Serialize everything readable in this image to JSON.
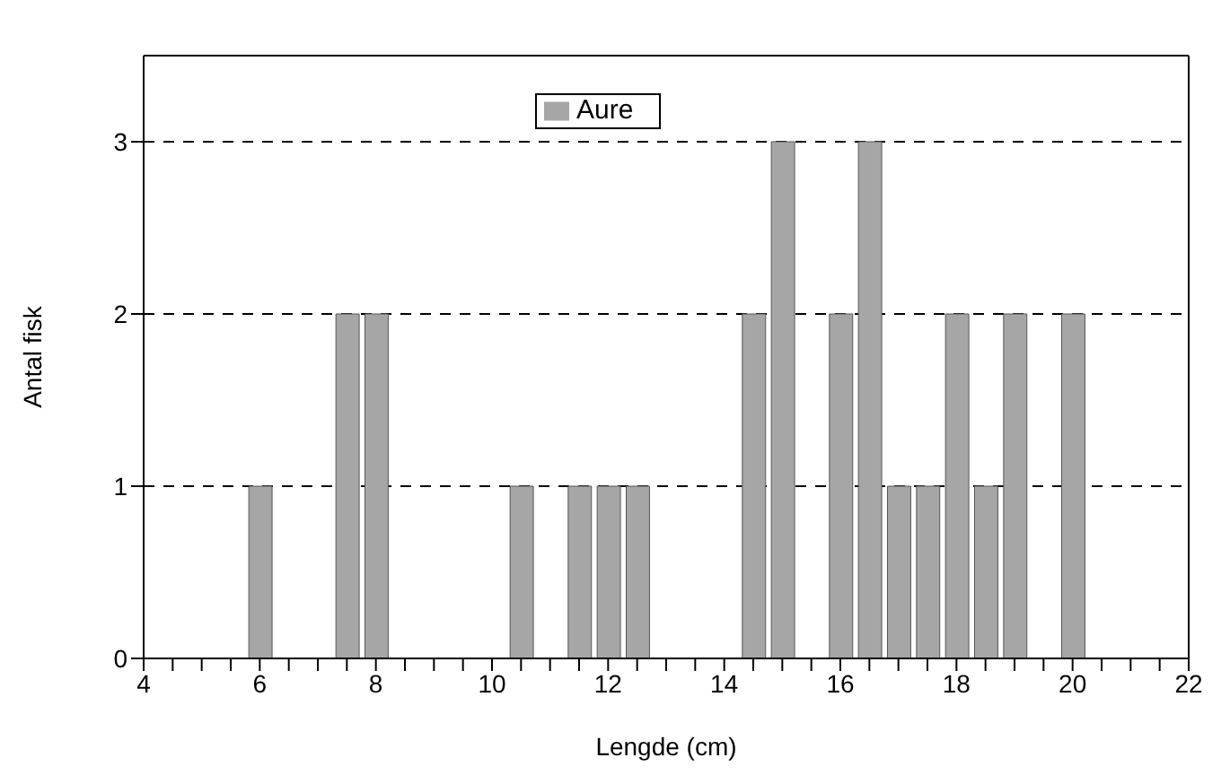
{
  "chart_data": {
    "type": "bar",
    "xlabel": "Lengde (cm)",
    "ylabel": "Antal fisk",
    "x": [
      6,
      7.5,
      8,
      10.5,
      11.5,
      12,
      12.5,
      14.5,
      15,
      16,
      16.5,
      17,
      17.5,
      18,
      18.5,
      19,
      20
    ],
    "series": [
      {
        "name": "Aure",
        "color": "#a6a6a6",
        "values": [
          1,
          2,
          2,
          1,
          1,
          1,
          1,
          2,
          3,
          2,
          3,
          1,
          1,
          2,
          1,
          2,
          2
        ]
      }
    ],
    "xlim": [
      4,
      22
    ],
    "xticks": [
      4,
      {
        "value": 4.5,
        "label": null
      },
      {
        "value": 5,
        "label": null
      },
      {
        "value": 5.5,
        "label": null
      },
      6,
      {
        "value": 6.5,
        "label": null
      },
      {
        "value": 7,
        "label": null
      },
      {
        "value": 7.5,
        "label": null
      },
      8,
      {
        "value": 8.5,
        "label": null
      },
      {
        "value": 9,
        "label": null
      },
      {
        "value": 9.5,
        "label": null
      },
      10,
      {
        "value": 10.5,
        "label": null
      },
      {
        "value": 11,
        "label": null
      },
      {
        "value": 11.5,
        "label": null
      },
      12,
      {
        "value": 12.5,
        "label": null
      },
      {
        "value": 13,
        "label": null
      },
      {
        "value": 13.5,
        "label": null
      },
      14,
      {
        "value": 14.5,
        "label": null
      },
      {
        "value": 15,
        "label": null
      },
      {
        "value": 15.5,
        "label": null
      },
      16,
      {
        "value": 16.5,
        "label": null
      },
      {
        "value": 17,
        "label": null
      },
      {
        "value": 17.5,
        "label": null
      },
      18,
      {
        "value": 18.5,
        "label": null
      },
      {
        "value": 19,
        "label": null
      },
      {
        "value": 19.5,
        "label": null
      },
      20,
      {
        "value": 20.5,
        "label": null
      },
      {
        "value": 21,
        "label": null
      },
      {
        "value": 21.5,
        "label": null
      },
      22
    ],
    "ylim": [
      0,
      3.5
    ],
    "yticks": [
      0,
      1,
      2,
      3
    ],
    "grid": "y",
    "legend": "top"
  }
}
